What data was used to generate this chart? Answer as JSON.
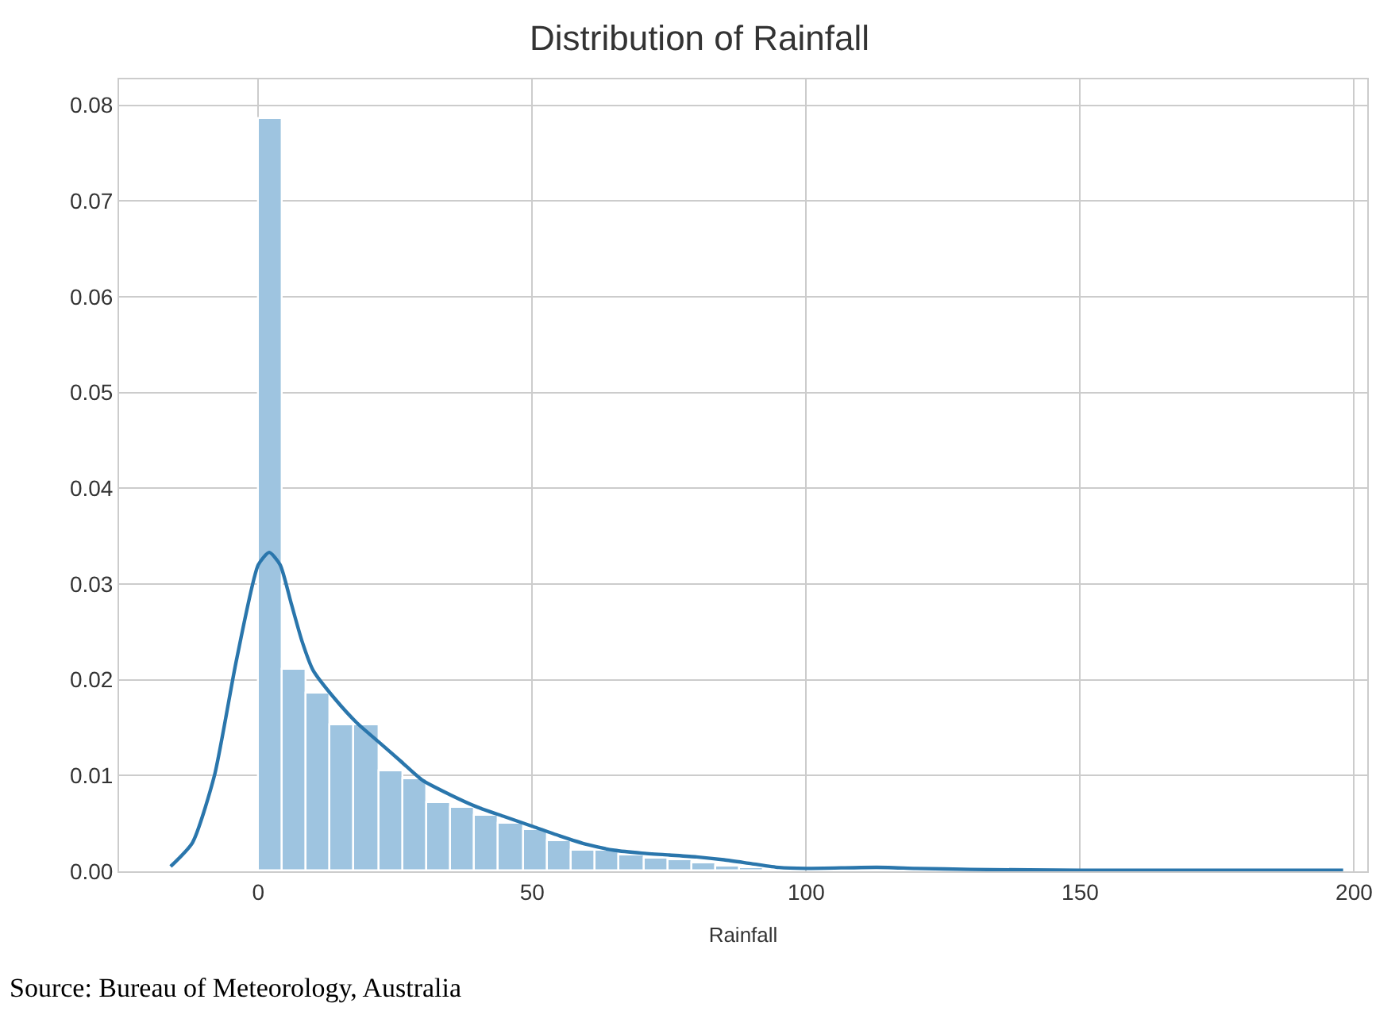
{
  "chart_data": {
    "type": "histogram",
    "title": "Distribution of Rainfall",
    "xlabel": "Rainfall",
    "annotations": [
      "Source: Bureau of Meteorology, Australia"
    ],
    "bins": [
      0,
      4.4,
      8.8,
      13.2,
      17.6,
      22,
      26.4,
      30.8,
      35.2,
      39.6,
      44,
      48.4,
      52.8,
      57.2,
      61.6,
      66,
      70.4,
      74.8,
      79.2,
      83.6,
      88,
      92.4,
      96.8,
      101.2,
      105.6,
      110,
      114.4,
      118.8,
      123.2,
      127.6,
      132,
      136.4,
      140.8,
      145.2,
      149.6,
      154,
      158.4,
      162.8,
      167.2,
      171.6,
      176,
      180.4,
      184.8,
      189.2,
      193.6,
      198
    ],
    "series": [
      {
        "color": "#9ec4e0",
        "values": [
          0.0785,
          0.021,
          0.0185,
          0.0152,
          0.0152,
          0.0105,
          0.0096,
          0.0072,
          0.0066,
          0.0058,
          0.005,
          0.0043,
          0.0032,
          0.0021,
          0.0021,
          0.0016,
          0.0013,
          0.0011,
          0.0008,
          0.0005,
          0.0003,
          null,
          null,
          null,
          null,
          null,
          null,
          null,
          null,
          null,
          null,
          null,
          null,
          null,
          null,
          null,
          null,
          null,
          null,
          null,
          null,
          null,
          null,
          null,
          null
        ]
      },
      {
        "type": "line",
        "color": "#2a76ac",
        "x": [
          -16,
          -12,
          -8,
          -4,
          0,
          2,
          4,
          6,
          8,
          10,
          14,
          18,
          22,
          26,
          30,
          35,
          40,
          45,
          50,
          55,
          60,
          65,
          70,
          75,
          80,
          85,
          90,
          95,
          100,
          110,
          115,
          120,
          130,
          150,
          198
        ],
        "values": [
          0.0005,
          0.003,
          0.01,
          0.022,
          0.032,
          0.0333,
          0.032,
          0.028,
          0.024,
          0.021,
          0.018,
          0.0155,
          0.0135,
          0.0115,
          0.0095,
          0.008,
          0.0067,
          0.0057,
          0.0047,
          0.0037,
          0.0028,
          0.0022,
          0.0019,
          0.0017,
          0.0015,
          0.0012,
          0.0008,
          0.0004,
          0.0003,
          0.0004,
          0.0004,
          0.0003,
          0.0002,
          0.0001,
          0.0001
        ]
      }
    ],
    "xlim": [
      -25.4,
      202.4
    ],
    "xticks": [
      0,
      50,
      100,
      150,
      200
    ],
    "ylim": [
      0,
      0.0827
    ],
    "yticks": [
      {
        "value": 0,
        "label": "0.00"
      },
      {
        "value": 0.01,
        "label": "0.01"
      },
      {
        "value": 0.02,
        "label": "0.02"
      },
      {
        "value": 0.03,
        "label": "0.03"
      },
      {
        "value": 0.04,
        "label": "0.04"
      },
      {
        "value": 0.05,
        "label": "0.05"
      },
      {
        "value": 0.06,
        "label": "0.06"
      },
      {
        "value": 0.07,
        "label": "0.07"
      },
      {
        "value": 0.08,
        "label": "0.08"
      }
    ],
    "grid": true
  }
}
